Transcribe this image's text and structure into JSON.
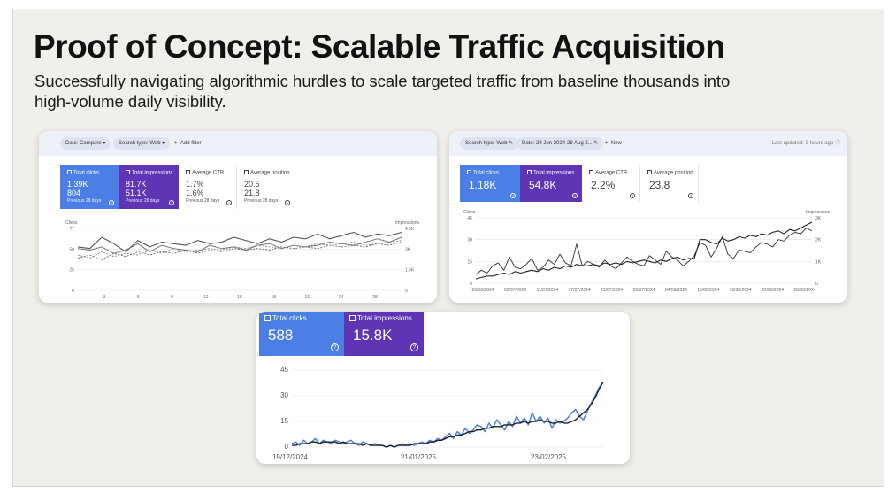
{
  "slide": {
    "title": "Proof of Concept: Scalable Traffic Acquisition",
    "subtitle": "Successfully navigating algorithmic hurdles to scale targeted traffic from baseline thousands into high-volume daily visibility."
  },
  "card1": {
    "toolbar": {
      "date_chip": "Date: Compare",
      "search_type_chip": "Search type: Web",
      "add_filter": "Add filter"
    },
    "tiles": [
      {
        "label": "Total clicks",
        "value": "1.39K",
        "prev_value": "804",
        "prev_label": "Previous 28 days"
      },
      {
        "label": "Total impressions",
        "value": "81.7K",
        "prev_value": "51.1K",
        "prev_label": "Previous 28 days"
      },
      {
        "label": "Average CTR",
        "value": "1.7%",
        "prev_value": "1.6%",
        "prev_label": "Previous 28 days"
      },
      {
        "label": "Average position",
        "value": "20.5",
        "prev_value": "21.8",
        "prev_label": "Previous 28 days"
      }
    ],
    "left_axis_title": "Clicks",
    "right_axis_title": "Impressions",
    "y_left_ticks": [
      "77",
      "50",
      "25",
      "0"
    ],
    "y_right_ticks": [
      "4.5K",
      "3K",
      "1.5K",
      "0"
    ],
    "x_ticks": [
      "3",
      "6",
      "9",
      "12",
      "15",
      "18",
      "21",
      "24",
      "28"
    ]
  },
  "card2": {
    "toolbar": {
      "search_type_chip": "Search type: Web",
      "date_chip": "Date: 29 Jun 2024-28 Aug 2...",
      "new_button": "New",
      "last_updated": "Last updated: 3 hours ago"
    },
    "tiles": [
      {
        "label": "Total clicks",
        "value": "1.18K"
      },
      {
        "label": "Total impressions",
        "value": "54.8K"
      },
      {
        "label": "Average CTR",
        "value": "2.2%"
      },
      {
        "label": "Average position",
        "value": "23.8"
      }
    ],
    "left_axis_title": "Clicks",
    "right_axis_title": "Impressions",
    "y_left_ticks": [
      "45",
      "30",
      "15",
      "0"
    ],
    "y_right_ticks": [
      "3K",
      "2K",
      "1K",
      "0"
    ],
    "x_ticks": [
      "29/06/2024",
      "05/07/2024",
      "11/07/2024",
      "17/07/2024",
      "23/07/2024",
      "29/07/2024",
      "04/08/2024",
      "10/08/2024",
      "16/08/2024",
      "22/08/2024",
      "28/08/2024"
    ]
  },
  "card3": {
    "tiles": [
      {
        "label": "Total clicks",
        "value": "588"
      },
      {
        "label": "Total impressions",
        "value": "15.8K"
      }
    ],
    "y_ticks": [
      "45",
      "30",
      "15",
      "0"
    ],
    "x_ticks": [
      "19/12/2024",
      "21/01/2025",
      "23/02/2025"
    ]
  },
  "chart_data": [
    {
      "type": "line",
      "x": [
        1,
        2,
        3,
        4,
        5,
        6,
        7,
        8,
        9,
        10,
        11,
        12,
        13,
        14,
        15,
        16,
        17,
        18,
        19,
        20,
        21,
        22,
        23,
        24,
        25,
        26,
        27,
        28
      ],
      "series": [
        {
          "values": [
            54,
            52,
            66,
            58,
            48,
            62,
            54,
            60,
            58,
            56,
            62,
            58,
            60,
            66,
            62,
            58,
            64,
            60,
            66,
            64,
            70,
            64,
            68,
            72,
            66,
            70,
            68,
            72
          ]
        },
        {
          "values": [
            52,
            50,
            54,
            46,
            50,
            58,
            48,
            56,
            52,
            50,
            48,
            56,
            52,
            54,
            50,
            56,
            58,
            52,
            56,
            54,
            56,
            60,
            58,
            56,
            60,
            64,
            60,
            66
          ]
        },
        {
          "values": [
            40,
            44,
            38,
            46,
            42,
            48,
            44,
            48,
            46,
            50,
            46,
            50,
            48,
            52,
            50,
            52,
            50,
            54,
            52,
            54,
            52,
            56,
            54,
            56,
            54,
            58,
            56,
            60
          ]
        },
        {
          "values": [
            44,
            40,
            48,
            42,
            46,
            44,
            50,
            46,
            52,
            48,
            50,
            52,
            50,
            54,
            52,
            56,
            54,
            52,
            56,
            54,
            58,
            56,
            58,
            60,
            56,
            58,
            60,
            62
          ]
        }
      ],
      "ylim": [
        0,
        77
      ],
      "grid": true
    },
    {
      "type": "line",
      "x": [
        1,
        2,
        3,
        4,
        5,
        6,
        7,
        8,
        9,
        10,
        11,
        12,
        13,
        14,
        15,
        16,
        17,
        18,
        19,
        20,
        21,
        22,
        23,
        24,
        25,
        26,
        27,
        28,
        29,
        30,
        31,
        32,
        33,
        34,
        35,
        36,
        37,
        38,
        39,
        40,
        41,
        42,
        43,
        44,
        45,
        46,
        47,
        48,
        49,
        50,
        51,
        52,
        53,
        54,
        55,
        56,
        57,
        58,
        59,
        60,
        61
      ],
      "series": [
        {
          "values": [
            6,
            9,
            7,
            12,
            14,
            9,
            18,
            11,
            10,
            13,
            17,
            9,
            11,
            16,
            13,
            20,
            14,
            12,
            27,
            12,
            15,
            13,
            11,
            16,
            12,
            10,
            14,
            18,
            15,
            13,
            12,
            19,
            16,
            13,
            22,
            18,
            16,
            12,
            15,
            19,
            28,
            26,
            18,
            24,
            32,
            20,
            17,
            23,
            22,
            21,
            25,
            28,
            27,
            25,
            30,
            29,
            33,
            35,
            34,
            38,
            36
          ]
        },
        {
          "values": [
            3,
            4,
            5,
            5,
            6,
            7,
            6,
            8,
            7,
            8,
            9,
            8,
            10,
            9,
            11,
            10,
            12,
            11,
            13,
            12,
            12,
            13,
            12,
            14,
            13,
            14,
            13,
            15,
            14,
            15,
            16,
            15,
            14,
            16,
            15,
            17,
            18,
            16,
            17,
            17,
            30,
            30,
            28,
            27,
            31,
            29,
            30,
            32,
            31,
            33,
            32,
            34,
            33,
            35,
            36,
            34,
            37,
            36,
            38,
            40,
            42
          ]
        }
      ],
      "ylim": [
        0,
        45
      ],
      "grid": true
    },
    {
      "type": "line",
      "x": [
        1,
        2,
        3,
        4,
        5,
        6,
        7,
        8,
        9,
        10,
        11,
        12,
        13,
        14,
        15,
        16,
        17,
        18,
        19,
        20,
        21,
        22,
        23,
        24,
        25,
        26,
        27,
        28,
        29,
        30,
        31,
        32,
        33,
        34,
        35,
        36,
        37,
        38,
        39,
        40,
        41,
        42,
        43,
        44,
        45,
        46,
        47,
        48,
        49,
        50,
        51,
        52,
        53,
        54,
        55,
        56,
        57,
        58,
        59,
        60,
        61,
        62,
        63,
        64,
        65,
        66,
        67,
        68,
        69,
        70,
        71,
        72,
        73,
        74,
        75,
        76,
        77,
        78,
        79,
        80
      ],
      "series": [
        {
          "values": [
            2,
            3,
            1,
            4,
            2,
            3,
            5,
            2,
            4,
            3,
            2,
            4,
            3,
            2,
            3,
            4,
            2,
            1,
            3,
            2,
            1,
            2,
            1,
            1,
            0,
            1,
            0,
            1,
            2,
            1,
            2,
            1,
            2,
            3,
            2,
            4,
            3,
            5,
            4,
            6,
            8,
            5,
            9,
            7,
            11,
            8,
            10,
            13,
            12,
            9,
            14,
            11,
            16,
            13,
            10,
            15,
            12,
            18,
            14,
            17,
            13,
            20,
            15,
            18,
            14,
            17,
            11,
            16,
            14,
            15,
            17,
            20,
            22,
            18,
            16,
            21,
            26,
            30,
            35,
            38
          ]
        },
        {
          "values": [
            1,
            1,
            2,
            2,
            2,
            3,
            3,
            2,
            3,
            3,
            3,
            3,
            2,
            3,
            2,
            2,
            2,
            2,
            1,
            2,
            1,
            1,
            1,
            1,
            0,
            1,
            0,
            1,
            1,
            1,
            1,
            2,
            2,
            2,
            2,
            3,
            3,
            4,
            4,
            5,
            6,
            6,
            7,
            7,
            8,
            9,
            9,
            10,
            10,
            11,
            11,
            12,
            12,
            12,
            13,
            13,
            13,
            14,
            14,
            15,
            14,
            15,
            15,
            16,
            15,
            15,
            14,
            14,
            15,
            14,
            14,
            15,
            16,
            18,
            20,
            22,
            25,
            29,
            34,
            38
          ]
        }
      ],
      "ylim": [
        0,
        45
      ],
      "grid": true
    }
  ],
  "colors": {
    "blue_tile": "#4c7fe6",
    "purple_tile": "#5f35b5",
    "clicks_line": "#4f80e6",
    "impressions_line": "#222222"
  }
}
